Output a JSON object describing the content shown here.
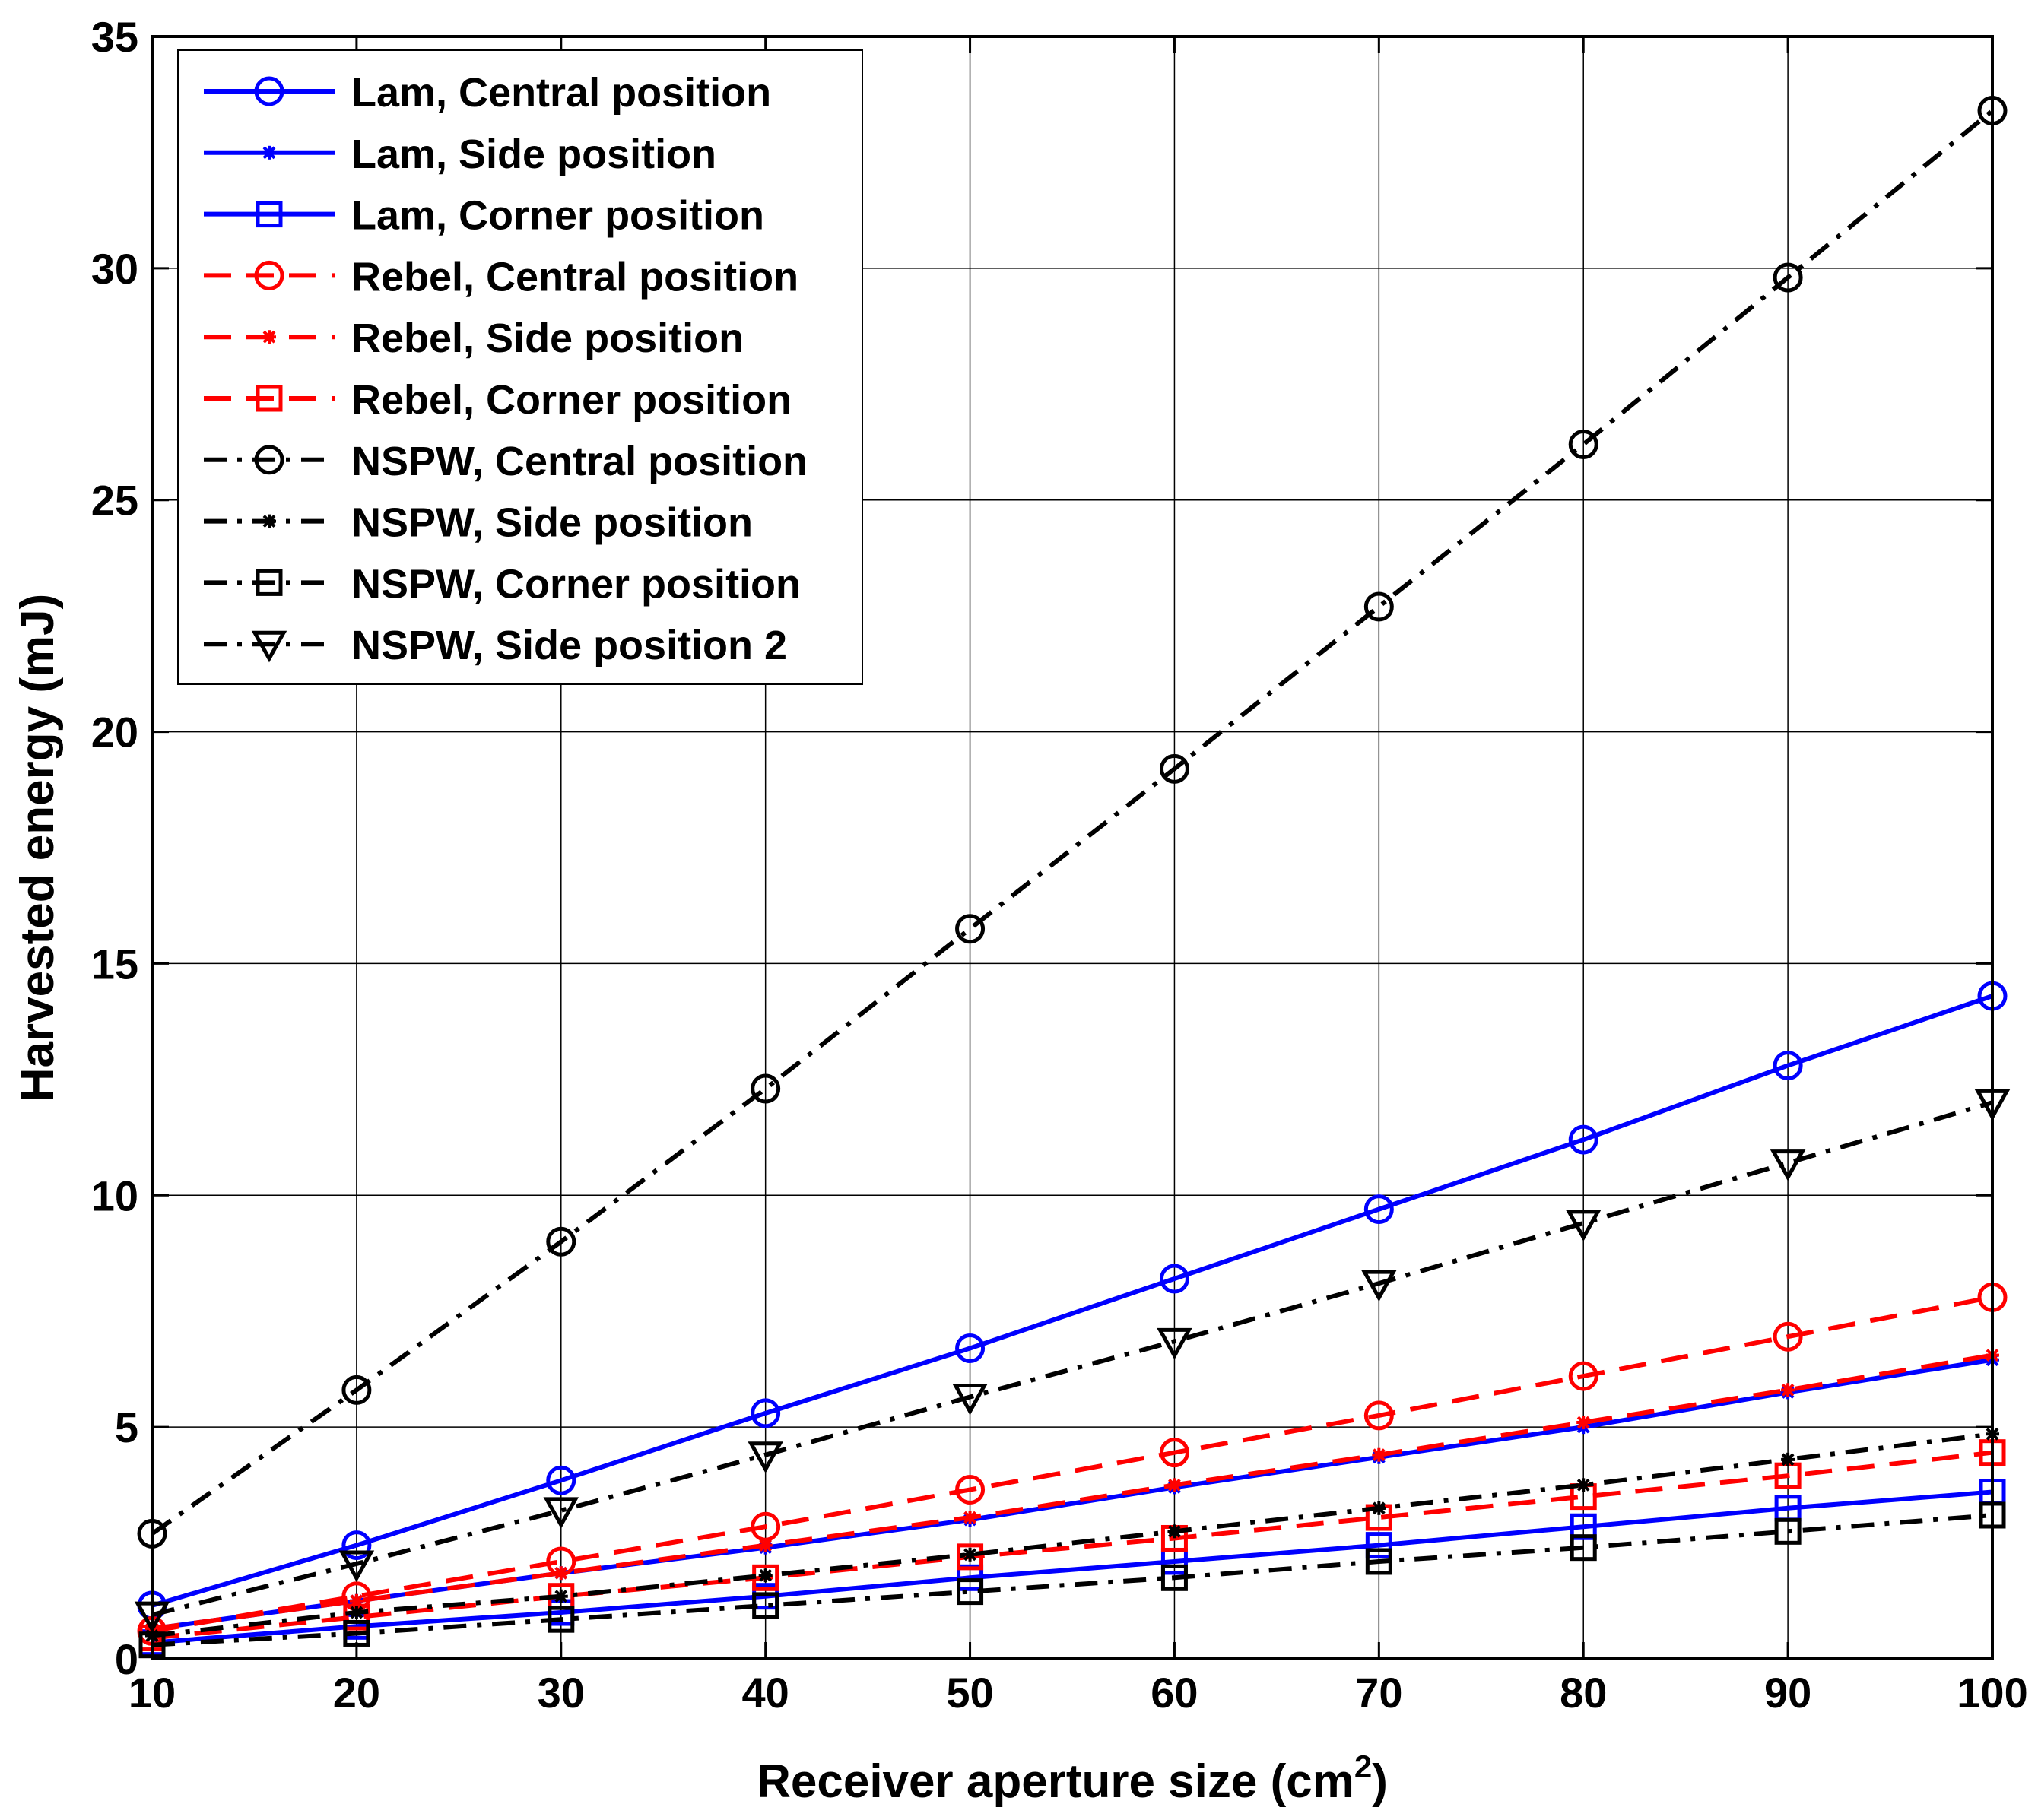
{
  "chart_data": {
    "type": "line",
    "title": "",
    "xlabel": "Receiver aperture size (cm",
    "xlabel_sup": "2",
    "xlabel_end": ")",
    "ylabel": "Harvested energy (mJ)",
    "xlim": [
      10,
      100
    ],
    "ylim": [
      0,
      35
    ],
    "xticks": [
      10,
      20,
      30,
      40,
      50,
      60,
      70,
      80,
      90,
      100
    ],
    "yticks": [
      0,
      5,
      10,
      15,
      20,
      25,
      30,
      35
    ],
    "grid": true,
    "legend_position": "top-left",
    "x": [
      10,
      20,
      30,
      40,
      50,
      60,
      70,
      80,
      90,
      100
    ],
    "series": [
      {
        "name": "Lam, Central position",
        "color": "#0000ff",
        "dash": "solid",
        "marker": "circle",
        "values": [
          1.15,
          2.45,
          3.85,
          5.3,
          6.7,
          8.2,
          9.7,
          11.2,
          12.8,
          14.3
        ]
      },
      {
        "name": "Lam, Side position",
        "color": "#0000ff",
        "dash": "solid",
        "marker": "star",
        "values": [
          0.65,
          1.25,
          1.85,
          2.4,
          3.0,
          3.7,
          4.35,
          5.0,
          5.75,
          6.45
        ]
      },
      {
        "name": "Lam, Corner position",
        "color": "#0000ff",
        "dash": "solid",
        "marker": "square",
        "values": [
          0.35,
          0.7,
          1.0,
          1.35,
          1.75,
          2.1,
          2.45,
          2.85,
          3.25,
          3.6
        ]
      },
      {
        "name": "Rebel, Central position",
        "color": "#ff0000",
        "dash": "dashed",
        "marker": "circle",
        "values": [
          0.6,
          1.35,
          2.1,
          2.85,
          3.65,
          4.45,
          5.25,
          6.1,
          6.95,
          7.8
        ]
      },
      {
        "name": "Rebel, Side position",
        "color": "#ff0000",
        "dash": "dashed",
        "marker": "star",
        "values": [
          0.65,
          1.25,
          1.85,
          2.45,
          3.05,
          3.75,
          4.4,
          5.1,
          5.8,
          6.55
        ]
      },
      {
        "name": "Rebel, Corner position",
        "color": "#ff0000",
        "dash": "dashed",
        "marker": "square",
        "values": [
          0.45,
          0.9,
          1.35,
          1.75,
          2.2,
          2.6,
          3.05,
          3.5,
          3.95,
          4.45
        ]
      },
      {
        "name": "NSPW, Central position",
        "color": "#000000",
        "dash": "dashdot",
        "marker": "circle",
        "values": [
          2.7,
          5.8,
          9.0,
          12.3,
          15.75,
          19.2,
          22.7,
          26.2,
          29.8,
          33.4
        ]
      },
      {
        "name": "NSPW, Side position",
        "color": "#000000",
        "dash": "dashdot",
        "marker": "star",
        "values": [
          0.5,
          1.0,
          1.35,
          1.8,
          2.25,
          2.75,
          3.25,
          3.75,
          4.3,
          4.85
        ]
      },
      {
        "name": "NSPW, Corner position",
        "color": "#000000",
        "dash": "dashdot",
        "marker": "square",
        "values": [
          0.3,
          0.55,
          0.85,
          1.15,
          1.45,
          1.75,
          2.1,
          2.4,
          2.75,
          3.1
        ]
      },
      {
        "name": "NSPW, Side position 2",
        "color": "#000000",
        "dash": "dashdot",
        "marker": "triangle-down",
        "values": [
          0.95,
          2.05,
          3.2,
          4.4,
          5.65,
          6.85,
          8.1,
          9.4,
          10.7,
          12.0
        ]
      }
    ]
  }
}
